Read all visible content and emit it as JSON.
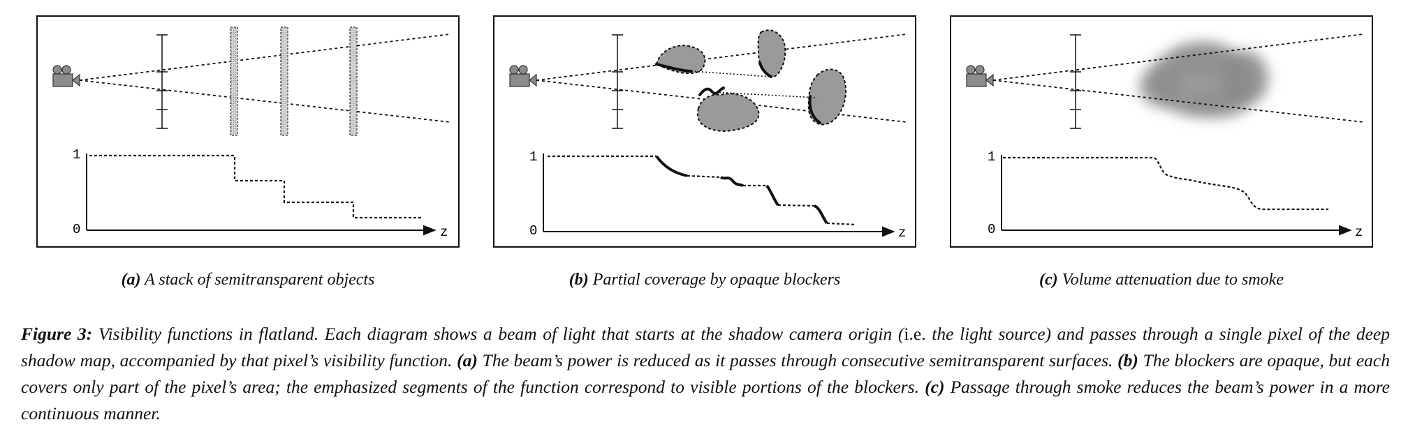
{
  "panels": [
    {
      "id": "a",
      "label": "(a)",
      "caption": "A stack of semitransparent objects",
      "y_top": "1",
      "y_bottom": "0",
      "x_axis": "z"
    },
    {
      "id": "b",
      "label": "(b)",
      "caption": "Partial coverage by opaque blockers",
      "y_top": "1",
      "y_bottom": "0",
      "x_axis": "z"
    },
    {
      "id": "c",
      "label": "(c)",
      "caption": "Volume attenuation due to smoke",
      "y_top": "1",
      "y_bottom": "0",
      "x_axis": "z"
    }
  ],
  "figure_caption": {
    "label": "Figure 3:",
    "part1": "Visibility functions in flatland. Each diagram shows a beam of light that starts at the shadow camera origin (",
    "ie": "i.e.",
    "part2": " the light source) and passes through a single pixel of the deep shadow map, accompanied by that pixel’s visibility function. ",
    "a_label": "(a)",
    "a_text": " The beam’s power is reduced as it passes through consecutive semitransparent surfaces. ",
    "b_label": "(b)",
    "b_text": " The blockers are opaque, but each covers only part of the pixel’s area; the emphasized segments of the function correspond to visible portions of the blockers. ",
    "c_label": "(c)",
    "c_text": " Passage through smoke reduces the beam’s power in a more continuous manner."
  },
  "colors": {
    "blocker_fill": "#9a9a9a",
    "camera": "#8c8c8c",
    "smoke": "#8a8a8a"
  },
  "icons": [
    "camera-icon"
  ]
}
